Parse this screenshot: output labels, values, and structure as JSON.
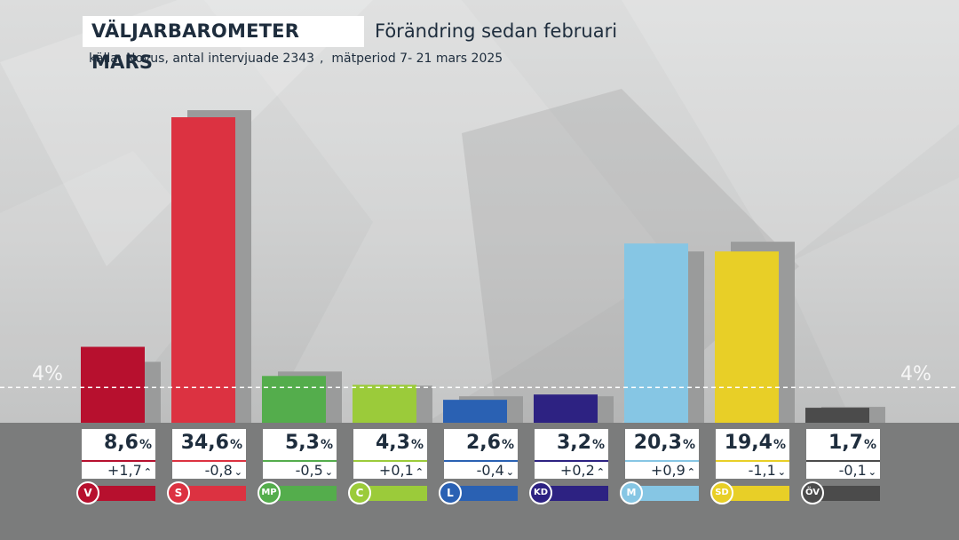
{
  "title": "VÄLJARBAROMETER MARS",
  "subtitle": "Förändring sedan februari",
  "source": "källa: Novus, antal intervjuade 2343",
  "period": "mätperiod 7- 21 mars 2025",
  "threshold_label": "4%",
  "chart_data": {
    "type": "bar",
    "title": "VÄLJARBAROMETER MARS",
    "subtitle": "Förändring sedan februari",
    "categories": [
      "V",
      "S",
      "MP",
      "C",
      "L",
      "KD",
      "M",
      "SD",
      "ÖV"
    ],
    "series": [
      {
        "values": [
          8.6,
          34.6,
          5.3,
          4.3,
          2.6,
          3.2,
          20.3,
          19.4,
          1.7
        ]
      },
      {
        "values": [
          6.9,
          35.4,
          5.8,
          4.2,
          3.0,
          3.0,
          19.4,
          20.5,
          1.8
        ]
      }
    ],
    "value_labels": [
      "8,6",
      "34,6",
      "5,3",
      "4,3",
      "2,6",
      "3,2",
      "20,3",
      "19,4",
      "1,7"
    ],
    "value_unit": "%",
    "changes": [
      "+1,7",
      "-0,8",
      "-0,5",
      "+0,1",
      "-0,4",
      "+0,2",
      "+0,9",
      "-1,1",
      "-0,1"
    ],
    "change_direction": [
      "up",
      "down",
      "down",
      "up",
      "down",
      "up",
      "up",
      "down",
      "down"
    ],
    "threshold": 4,
    "ylim": [
      0,
      36
    ],
    "colors": [
      "#b7102e",
      "#dc3241",
      "#54ad4c",
      "#9bcb3a",
      "#2a61b3",
      "#2d2282",
      "#86c6e4",
      "#e8cf27",
      "#4b4b4b"
    ],
    "previous_color": "#9a9b9b",
    "grid": false
  }
}
